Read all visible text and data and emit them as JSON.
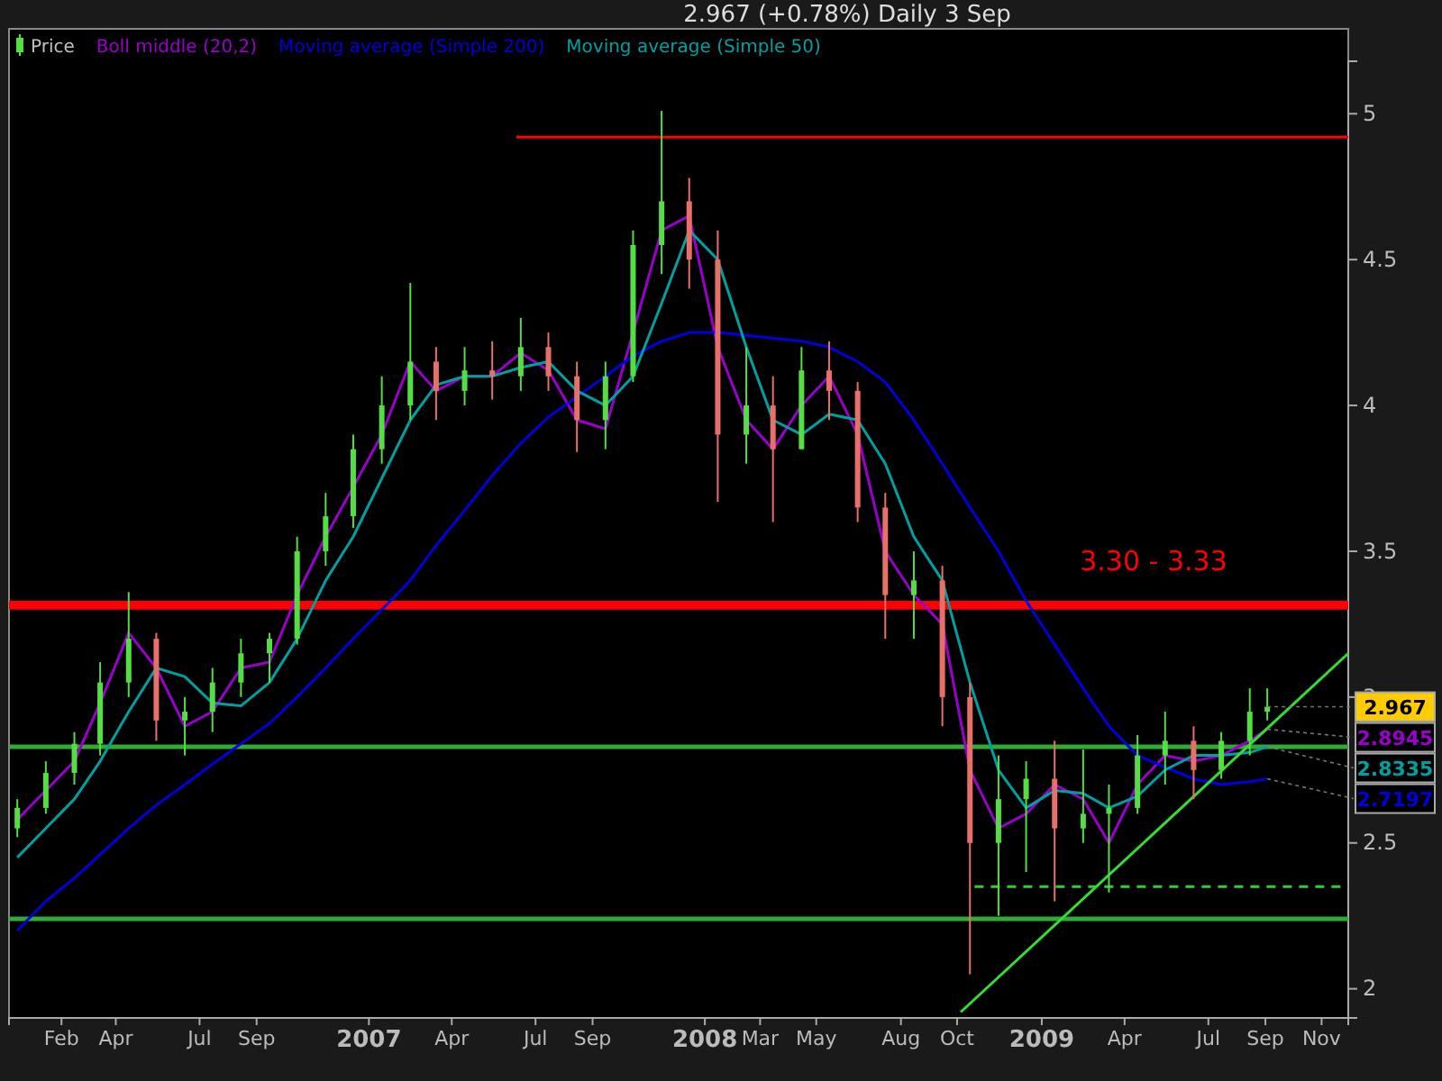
{
  "chart_data": {
    "type": "candlestick",
    "subtitle": "2.967 (+0.78%)   Daily  3 Sep",
    "xlim": [
      "2005-12-06",
      "2009-11-30"
    ],
    "ylim": [
      1.9,
      5.18
    ],
    "yticks": [
      2,
      2.5,
      3,
      3.5,
      4,
      4.5,
      5
    ],
    "xticks": [
      {
        "value": "2006-02-01",
        "label": "Feb"
      },
      {
        "value": "2006-04-01",
        "label": "Apr"
      },
      {
        "value": "2006-07-01",
        "label": "Jul"
      },
      {
        "value": "2006-09-01",
        "label": "Sep"
      },
      {
        "value": "2007-01-01",
        "label": "2007"
      },
      {
        "value": "2007-04-01",
        "label": "Apr"
      },
      {
        "value": "2007-07-01",
        "label": "Jul"
      },
      {
        "value": "2007-09-01",
        "label": "Sep"
      },
      {
        "value": "2008-01-01",
        "label": "2008"
      },
      {
        "value": "2008-03-01",
        "label": "Mar"
      },
      {
        "value": "2008-05-01",
        "label": "May"
      },
      {
        "value": "2008-08-01",
        "label": "Aug"
      },
      {
        "value": "2008-10-01",
        "label": "Oct"
      },
      {
        "value": "2009-01-01",
        "label": "2009"
      },
      {
        "value": "2009-04-01",
        "label": "Apr"
      },
      {
        "value": "2009-07-01",
        "label": "Jul"
      },
      {
        "value": "2009-09-01",
        "label": "Sep"
      },
      {
        "value": "2009-11-01",
        "label": "Nov"
      }
    ],
    "x": [
      "2005-12-15",
      "2006-01-15",
      "2006-02-15",
      "2006-03-15",
      "2006-04-15",
      "2006-05-15",
      "2006-06-15",
      "2006-07-15",
      "2006-08-15",
      "2006-09-15",
      "2006-10-15",
      "2006-11-15",
      "2006-12-15",
      "2007-01-15",
      "2007-02-15",
      "2007-03-15",
      "2007-04-15",
      "2007-05-15",
      "2007-06-15",
      "2007-07-15",
      "2007-08-15",
      "2007-09-15",
      "2007-10-15",
      "2007-11-15",
      "2007-12-15",
      "2008-01-15",
      "2008-02-15",
      "2008-03-15",
      "2008-04-15",
      "2008-05-15",
      "2008-06-15",
      "2008-07-15",
      "2008-08-15",
      "2008-09-15",
      "2008-10-15",
      "2008-11-15",
      "2008-12-15",
      "2009-01-15",
      "2009-02-15",
      "2009-03-15",
      "2009-04-15",
      "2009-05-15",
      "2009-06-15",
      "2009-07-15",
      "2009-08-15",
      "2009-09-03"
    ],
    "series": [
      {
        "type": "candlestick",
        "name": "Price",
        "colors": [
          "#55dd44",
          "#55dd44",
          "#55dd44",
          "#55dd44",
          "#55dd44",
          "#e87068",
          "#55dd44",
          "#55dd44",
          "#55dd44",
          "#55dd44",
          "#55dd44",
          "#55dd44",
          "#55dd44",
          "#55dd44",
          "#55dd44",
          "#e87068",
          "#55dd44",
          "#e87068",
          "#55dd44",
          "#e87068",
          "#e87068",
          "#55dd44",
          "#55dd44",
          "#55dd44",
          "#e87068",
          "#e87068",
          "#55dd44",
          "#e87068",
          "#55dd44",
          "#e87068",
          "#e87068",
          "#e87068",
          "#55dd44",
          "#e87068",
          "#e87068",
          "#55dd44",
          "#55dd44",
          "#e87068",
          "#55dd44",
          "#55dd44",
          "#55dd44",
          "#55dd44",
          "#e87068",
          "#55dd44",
          "#55dd44",
          "#55dd44"
        ],
        "ohlc": [
          [
            2.55,
            2.65,
            2.52,
            2.62
          ],
          [
            2.62,
            2.78,
            2.6,
            2.74
          ],
          [
            2.74,
            2.88,
            2.7,
            2.84
          ],
          [
            2.84,
            3.12,
            2.8,
            3.05
          ],
          [
            3.05,
            3.36,
            3.0,
            3.2
          ],
          [
            3.2,
            3.22,
            2.85,
            2.92
          ],
          [
            2.92,
            3.0,
            2.8,
            2.95
          ],
          [
            2.95,
            3.1,
            2.88,
            3.05
          ],
          [
            3.05,
            3.2,
            3.0,
            3.15
          ],
          [
            3.15,
            3.22,
            3.05,
            3.2
          ],
          [
            3.2,
            3.55,
            3.18,
            3.5
          ],
          [
            3.5,
            3.7,
            3.45,
            3.62
          ],
          [
            3.62,
            3.9,
            3.58,
            3.85
          ],
          [
            3.85,
            4.1,
            3.8,
            4.0
          ],
          [
            4.0,
            4.42,
            3.95,
            4.15
          ],
          [
            4.15,
            4.2,
            3.95,
            4.05
          ],
          [
            4.05,
            4.2,
            4.0,
            4.12
          ],
          [
            4.12,
            4.22,
            4.02,
            4.1
          ],
          [
            4.1,
            4.3,
            4.05,
            4.2
          ],
          [
            4.2,
            4.25,
            4.05,
            4.1
          ],
          [
            4.1,
            4.15,
            3.84,
            3.95
          ],
          [
            3.95,
            4.15,
            3.85,
            4.1
          ],
          [
            4.1,
            4.6,
            4.08,
            4.55
          ],
          [
            4.55,
            5.01,
            4.45,
            4.7
          ],
          [
            4.7,
            4.78,
            4.4,
            4.5
          ],
          [
            4.5,
            4.6,
            3.67,
            3.9
          ],
          [
            3.9,
            4.2,
            3.8,
            4.0
          ],
          [
            4.0,
            4.1,
            3.6,
            3.85
          ],
          [
            3.85,
            4.2,
            3.85,
            4.12
          ],
          [
            4.12,
            4.22,
            3.95,
            4.05
          ],
          [
            4.05,
            4.08,
            3.6,
            3.65
          ],
          [
            3.65,
            3.7,
            3.2,
            3.35
          ],
          [
            3.35,
            3.5,
            3.2,
            3.4
          ],
          [
            3.4,
            3.45,
            2.9,
            3.0
          ],
          [
            3.0,
            3.05,
            2.05,
            2.5
          ],
          [
            2.5,
            2.8,
            2.25,
            2.65
          ],
          [
            2.65,
            2.78,
            2.4,
            2.72
          ],
          [
            2.72,
            2.85,
            2.3,
            2.55
          ],
          [
            2.55,
            2.82,
            2.5,
            2.6
          ],
          [
            2.6,
            2.7,
            2.33,
            2.62
          ],
          [
            2.62,
            2.87,
            2.6,
            2.8
          ],
          [
            2.8,
            2.95,
            2.7,
            2.85
          ],
          [
            2.85,
            2.9,
            2.65,
            2.75
          ],
          [
            2.75,
            2.88,
            2.72,
            2.85
          ],
          [
            2.85,
            3.03,
            2.8,
            2.95
          ],
          [
            2.95,
            3.03,
            2.92,
            2.967
          ]
        ]
      },
      {
        "type": "line",
        "name": "Boll middle (20,2)",
        "color": "#9900cc",
        "values": [
          2.58,
          2.68,
          2.78,
          2.98,
          3.22,
          3.1,
          2.9,
          2.95,
          3.1,
          3.12,
          3.35,
          3.55,
          3.72,
          3.9,
          4.15,
          4.05,
          4.1,
          4.1,
          4.18,
          4.12,
          3.95,
          3.92,
          4.25,
          4.6,
          4.65,
          4.2,
          3.95,
          3.85,
          4.0,
          4.1,
          3.9,
          3.5,
          3.35,
          3.25,
          2.75,
          2.55,
          2.6,
          2.7,
          2.65,
          2.5,
          2.7,
          2.8,
          2.78,
          2.8,
          2.85,
          2.89
        ]
      },
      {
        "type": "line",
        "name": "Moving average (Simple 200)",
        "color": "#0000dd",
        "values": [
          2.2,
          2.3,
          2.38,
          2.46,
          2.55,
          2.63,
          2.7,
          2.77,
          2.84,
          2.91,
          3.0,
          3.1,
          3.2,
          3.3,
          3.4,
          3.52,
          3.64,
          3.76,
          3.87,
          3.96,
          4.03,
          4.1,
          4.17,
          4.22,
          4.25,
          4.25,
          4.24,
          4.23,
          4.22,
          4.2,
          4.15,
          4.08,
          3.95,
          3.8,
          3.65,
          3.5,
          3.33,
          3.18,
          3.03,
          2.9,
          2.8,
          2.76,
          2.72,
          2.7,
          2.71,
          2.72
        ]
      },
      {
        "type": "line",
        "name": "Moving average (Simple 50)",
        "color": "#00a0a0",
        "values": [
          2.45,
          2.55,
          2.65,
          2.78,
          2.95,
          3.1,
          3.07,
          2.98,
          2.97,
          3.05,
          3.2,
          3.4,
          3.55,
          3.75,
          3.95,
          4.07,
          4.1,
          4.1,
          4.13,
          4.15,
          4.05,
          4.0,
          4.1,
          4.35,
          4.6,
          4.5,
          4.2,
          3.95,
          3.9,
          3.97,
          3.95,
          3.8,
          3.55,
          3.4,
          3.05,
          2.75,
          2.62,
          2.68,
          2.67,
          2.62,
          2.66,
          2.75,
          2.8,
          2.8,
          2.81,
          2.83
        ]
      },
      {
        "type": "line",
        "color": "#ff0000",
        "x": [
          "2007-06-10",
          "2009-11-30"
        ],
        "values": [
          4.92,
          4.92
        ]
      },
      {
        "type": "line",
        "color": "#33cc33",
        "line_style": "dashed",
        "x": [
          "2008-10-20",
          "2009-11-30"
        ],
        "values": [
          2.35,
          2.35
        ]
      },
      {
        "type": "line",
        "color": "#33dd33",
        "x": [
          "2008-10-05",
          "2009-11-30"
        ],
        "values": [
          1.92,
          3.15
        ]
      }
    ],
    "bands": [
      {
        "axis": "y",
        "from": 3.3,
        "to": 3.33,
        "label": "3.30 - 3.33",
        "color": "#ff0000"
      }
    ],
    "ref_lines": [
      {
        "axis": "y",
        "value": 2.83,
        "color": "#33aa33"
      },
      {
        "axis": "y",
        "value": 2.24,
        "color": "#33aa33"
      }
    ],
    "annotations": [
      {
        "text": "2.967",
        "x": "2009-09-03",
        "y": 2.967
      },
      {
        "text": "2.8945",
        "x": "2009-09-03",
        "y": 2.89
      },
      {
        "text": "2.8335",
        "x": "2009-09-03",
        "y": 2.83
      },
      {
        "text": "2.7197",
        "x": "2009-09-03",
        "y": 2.72
      }
    ],
    "legend": "top left",
    "grid": false
  }
}
